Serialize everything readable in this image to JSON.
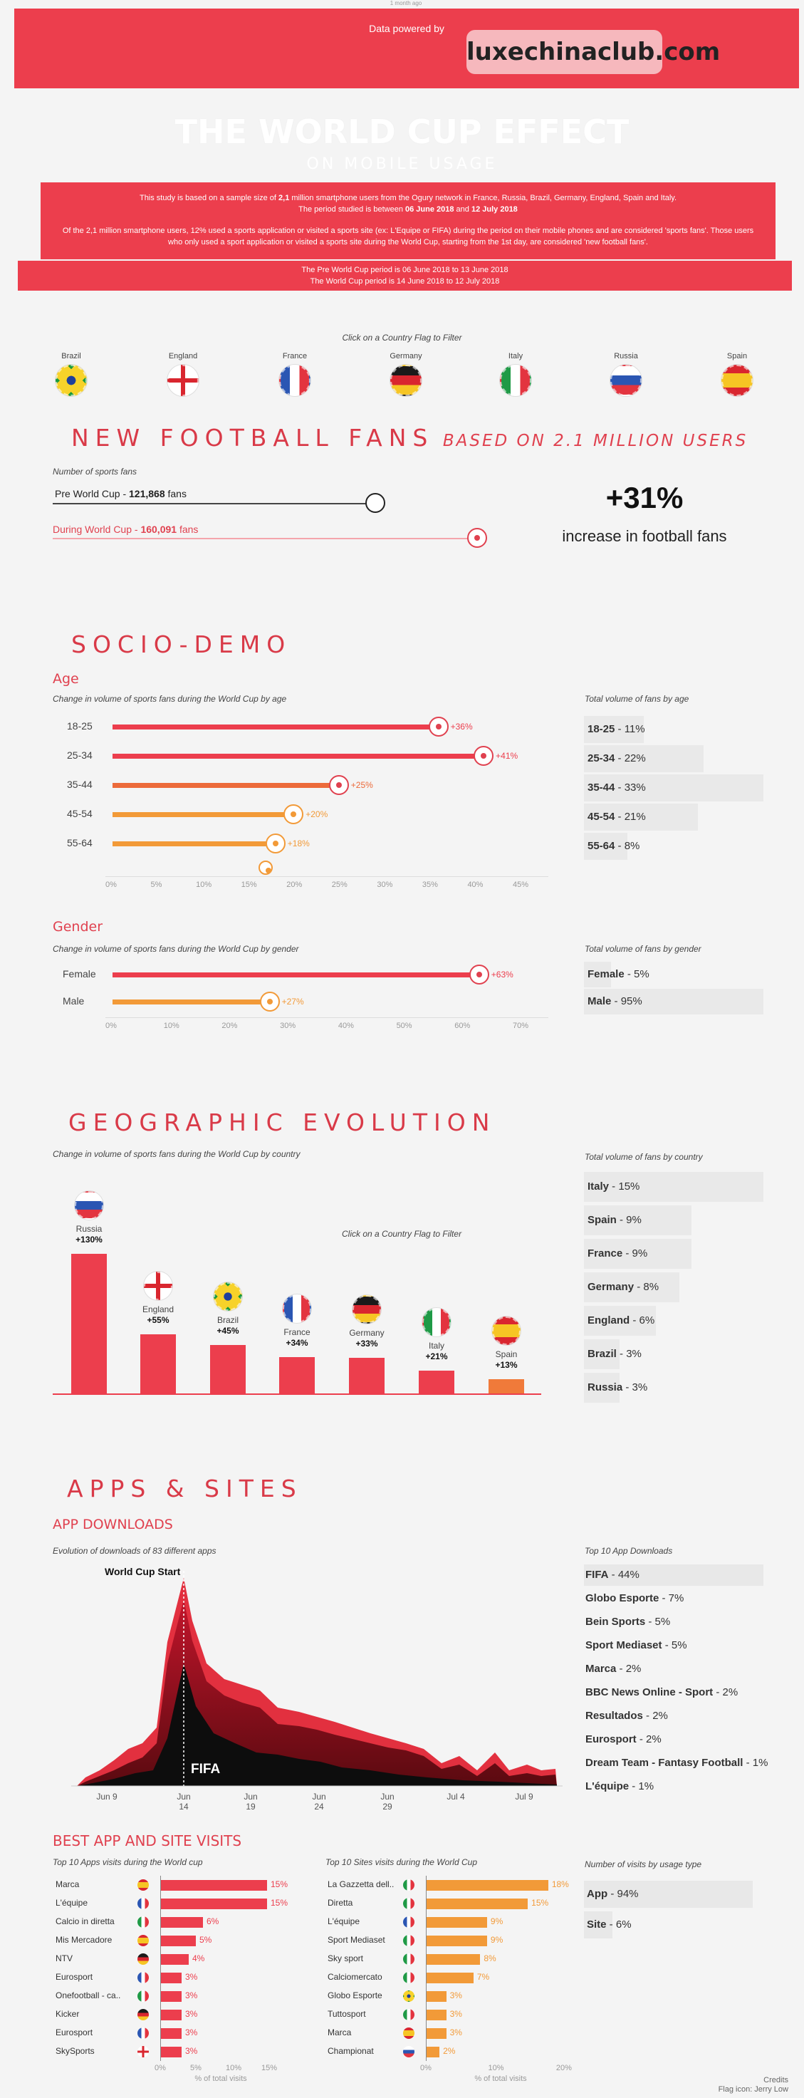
{
  "topbar": {
    "powered": "Data powered by",
    "brand": "luxechinaclub.com",
    "small_top": "1 month ago"
  },
  "title": {
    "main": "THE WORLD CUP EFFECT",
    "sub": "ON MOBILE USAGE"
  },
  "intro": {
    "p1a": "This study is based on a sample size of ",
    "p1b": "2,1",
    "p1c": " million smartphone users from the Ogury network in France, Russia, Brazil, Germany, England, Spain and Italy.",
    "p2a": "The period studied is between ",
    "p2b": "06 June 2018",
    "p2c": " and ",
    "p2d": "12 July 2018",
    "p3": "Of the 2,1 million smartphone users, 12% used a sports application or visited a sports site (ex: L'Equipe or FIFA) during the period on their mobile phones and are considered 'sports fans'. Those users who only used a sport application or visited a sports site during the World Cup, starting from the 1st day, are considered 'new football fans'.",
    "p4": "The Pre World Cup period is 06 June 2018 to 13 June 2018",
    "p5": "The World Cup period is 14 June 2018 to 12 July 2018"
  },
  "filter": {
    "caption": "Click on a Country Flag to Filter",
    "countries": [
      "Brazil",
      "England",
      "France",
      "Germany",
      "Italy",
      "Russia",
      "Spain"
    ]
  },
  "new_fans": {
    "title": "NEW FOOTBALL FANS",
    "title_sub": "BASED ON 2.1 MILLION USERS",
    "caption": "Number of sports fans",
    "pre_label": "Pre World Cup - ",
    "pre_value": "121,868",
    "pre_unit": " fans",
    "during_label": "During World Cup - ",
    "during_value": "160,091",
    "during_unit": " fans",
    "big_pct": "+31%",
    "big_caption": "increase in football fans"
  },
  "socio": {
    "title": "SOCIO-DEMO",
    "age_title": "Age",
    "age_caption": "Change in volume of sports fans during the World Cup by age",
    "age_total_caption": "Total volume of fans by age",
    "gender_title": "Gender",
    "gender_caption": "Change in volume of sports fans during the World Cup by gender",
    "gender_total_caption": "Total volume of fans by gender"
  },
  "geo": {
    "title": "GEOGRAPHIC EVOLUTION",
    "caption": "Change in volume of sports fans during the World Cup by country",
    "total_caption": "Total volume of fans by country",
    "filter_caption": "Click on a Country Flag to Filter"
  },
  "apps": {
    "title": "APPS & SITES",
    "downloads_title": "APP DOWNLOADS",
    "downloads_caption": "Evolution of downloads of 83 different apps",
    "world_cup_start": "World Cup Start",
    "fifa_label": "FIFA",
    "top10_caption": "Top 10 App Downloads",
    "best_title": "BEST APP AND SITE VISITS",
    "apps_caption": "Top 10 Apps visits during the World cup",
    "sites_caption": "Top 10 Sites visits during the World Cup",
    "usage_caption": "Number of visits by usage type",
    "pct_visits": "% of total visits"
  },
  "credits": {
    "line1": "Credits",
    "line2": "Flag icon: Jerry Low"
  },
  "colors": {
    "red": "#ec3e4d",
    "orange": "#f29a38",
    "dark": "#222222"
  },
  "chart_data": [
    {
      "type": "bar",
      "name": "age_change",
      "categories": [
        "18-25",
        "25-34",
        "35-44",
        "45-54",
        "55-64"
      ],
      "values": [
        36,
        41,
        25,
        20,
        18
      ],
      "labels": [
        "+36%",
        "+41%",
        "+25%",
        "+20%",
        "+18%"
      ],
      "xticks": [
        "0%",
        "5%",
        "10%",
        "15%",
        "20%",
        "25%",
        "30%",
        "35%",
        "40%",
        "45%"
      ],
      "xlim": [
        0,
        45
      ]
    },
    {
      "type": "bar",
      "name": "age_total",
      "categories": [
        "18-25",
        "25-34",
        "35-44",
        "45-54",
        "55-64"
      ],
      "values": [
        11,
        22,
        33,
        21,
        8
      ],
      "labels": [
        "11%",
        "22%",
        "33%",
        "21%",
        "8%"
      ]
    },
    {
      "type": "bar",
      "name": "gender_change",
      "categories": [
        "Female",
        "Male"
      ],
      "values": [
        63,
        27
      ],
      "labels": [
        "+63%",
        "+27%"
      ],
      "xticks": [
        "0%",
        "10%",
        "20%",
        "30%",
        "40%",
        "50%",
        "60%",
        "70%"
      ],
      "xlim": [
        0,
        70
      ]
    },
    {
      "type": "bar",
      "name": "gender_total",
      "categories": [
        "Female",
        "Male"
      ],
      "values": [
        5,
        95
      ],
      "labels": [
        "5%",
        "95%"
      ]
    },
    {
      "type": "bar",
      "name": "country_change",
      "categories": [
        "Russia",
        "England",
        "Brazil",
        "France",
        "Germany",
        "Italy",
        "Spain"
      ],
      "values": [
        130,
        55,
        45,
        34,
        33,
        21,
        13
      ],
      "labels": [
        "+130%",
        "+55%",
        "+45%",
        "+34%",
        "+33%",
        "+21%",
        "+13%"
      ]
    },
    {
      "type": "bar",
      "name": "country_total",
      "categories": [
        "Italy",
        "Spain",
        "France",
        "Germany",
        "England",
        "Brazil",
        "Russia"
      ],
      "values": [
        15,
        9,
        9,
        8,
        6,
        3,
        3
      ],
      "labels": [
        "15%",
        "9%",
        "9%",
        "8%",
        "6%",
        "3%",
        "3%"
      ]
    },
    {
      "type": "area",
      "name": "app_downloads",
      "xticks": [
        "Jun 9",
        "Jun 14",
        "Jun 19",
        "Jun 24",
        "Jun 29",
        "Jul 4",
        "Jul 9"
      ]
    },
    {
      "type": "table",
      "name": "top10_app_downloads",
      "categories": [
        "FIFA",
        "Globo Esporte",
        "Bein Sports",
        "Sport Mediaset",
        "Marca",
        "BBC News Online - Sport",
        "Resultados",
        "Eurosport",
        "Dream Team - Fantasy Football",
        "L'équipe"
      ],
      "values": [
        44,
        7,
        5,
        5,
        2,
        2,
        2,
        2,
        1,
        1
      ],
      "labels": [
        "44%",
        "7%",
        "5%",
        "5%",
        "2%",
        "2%",
        "2%",
        "2%",
        "1%",
        "1%"
      ]
    },
    {
      "type": "bar",
      "name": "top10_apps",
      "categories": [
        "Marca",
        "L'équipe",
        "Calcio in diretta",
        "Mis Mercadore",
        "NTV",
        "Eurosport",
        "Onefootball - ca..",
        "Kicker",
        "Eurosport",
        "SkySports"
      ],
      "flags": [
        "es",
        "fr",
        "it",
        "es",
        "de",
        "fr",
        "it",
        "de",
        "fr",
        "en"
      ],
      "values": [
        15,
        15,
        6,
        5,
        4,
        3,
        3,
        3,
        3,
        3
      ],
      "labels": [
        "15%",
        "15%",
        "6%",
        "5%",
        "4%",
        "3%",
        "3%",
        "3%",
        "3%",
        "3%"
      ],
      "xticks": [
        "0%",
        "5%",
        "10%",
        "15%"
      ],
      "xlim": [
        0,
        17
      ]
    },
    {
      "type": "bar",
      "name": "top10_sites",
      "categories": [
        "La Gazzetta dell..",
        "Diretta",
        "L'équipe",
        "Sport Mediaset",
        "Sky sport",
        "Calciomercato",
        "Globo Esporte",
        "Tuttosport",
        "Marca",
        "Championat"
      ],
      "flags": [
        "it",
        "it",
        "fr",
        "it",
        "it",
        "it",
        "br",
        "it",
        "es",
        "ru"
      ],
      "values": [
        18,
        15,
        9,
        9,
        8,
        7,
        3,
        3,
        3,
        2
      ],
      "labels": [
        "18%",
        "15%",
        "9%",
        "9%",
        "8%",
        "7%",
        "3%",
        "3%",
        "3%",
        "2%"
      ],
      "xticks": [
        "0%",
        "10%",
        "20%"
      ],
      "xlim": [
        0,
        22
      ]
    },
    {
      "type": "bar",
      "name": "usage_type",
      "categories": [
        "App",
        "Site"
      ],
      "values": [
        94,
        6
      ],
      "labels": [
        "94%",
        "6%"
      ]
    }
  ]
}
